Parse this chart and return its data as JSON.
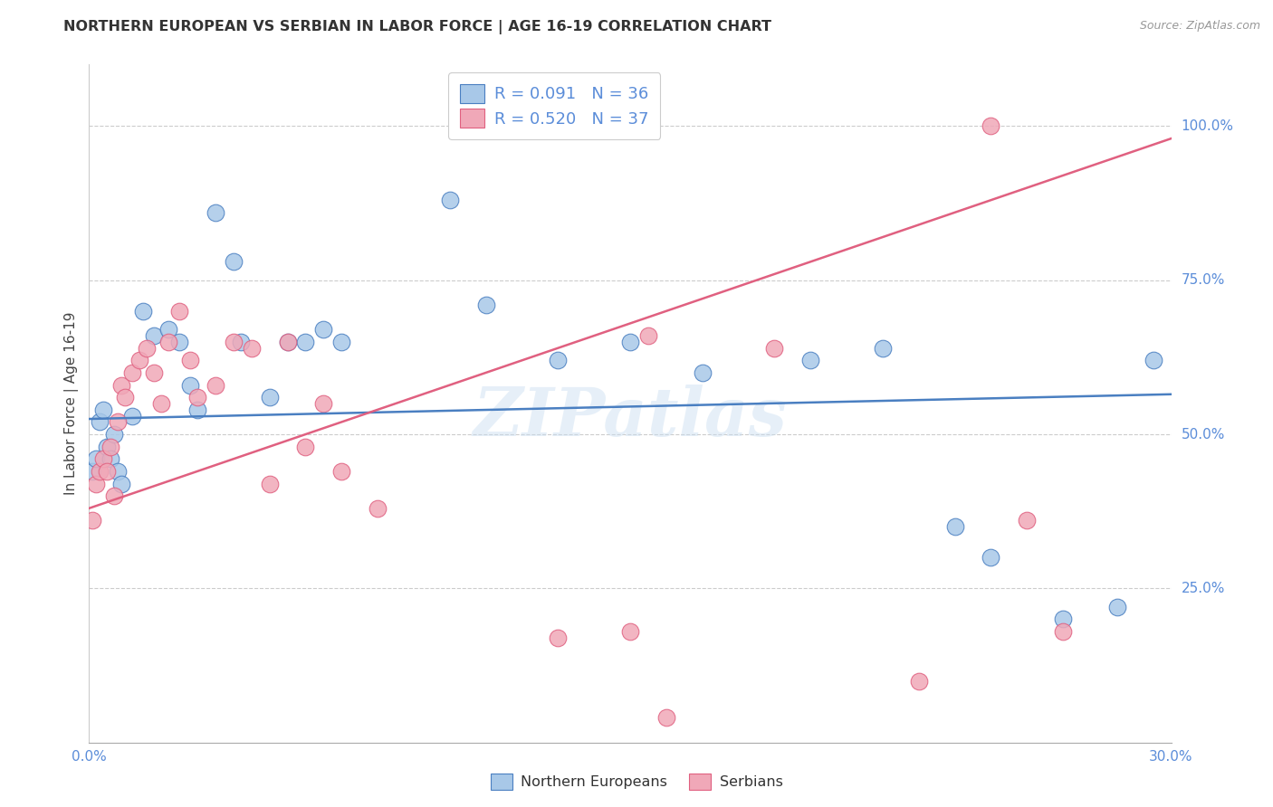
{
  "title": "NORTHERN EUROPEAN VS SERBIAN IN LABOR FORCE | AGE 16-19 CORRELATION CHART",
  "source": "Source: ZipAtlas.com",
  "ylabel": "In Labor Force | Age 16-19",
  "x_min": 0.0,
  "x_max": 0.3,
  "y_min": 0.0,
  "y_max": 1.1,
  "blue_color": "#a8c8e8",
  "pink_color": "#f0a8b8",
  "blue_line_color": "#4a7fc1",
  "pink_line_color": "#e06080",
  "legend_blue_label": "R = 0.091   N = 36",
  "legend_pink_label": "R = 0.520   N = 37",
  "watermark": "ZIPatlas",
  "ne_x": [
    0.001,
    0.002,
    0.003,
    0.004,
    0.005,
    0.006,
    0.007,
    0.008,
    0.009,
    0.012,
    0.015,
    0.018,
    0.022,
    0.025,
    0.028,
    0.03,
    0.035,
    0.04,
    0.042,
    0.05,
    0.055,
    0.06,
    0.065,
    0.07,
    0.1,
    0.11,
    0.13,
    0.15,
    0.17,
    0.2,
    0.22,
    0.24,
    0.25,
    0.27,
    0.285,
    0.295
  ],
  "ne_y": [
    0.44,
    0.46,
    0.52,
    0.54,
    0.48,
    0.46,
    0.5,
    0.44,
    0.42,
    0.53,
    0.7,
    0.66,
    0.67,
    0.65,
    0.58,
    0.54,
    0.86,
    0.78,
    0.65,
    0.56,
    0.65,
    0.65,
    0.67,
    0.65,
    0.88,
    0.71,
    0.62,
    0.65,
    0.6,
    0.62,
    0.64,
    0.35,
    0.3,
    0.2,
    0.22,
    0.62
  ],
  "sr_x": [
    0.001,
    0.002,
    0.003,
    0.004,
    0.005,
    0.006,
    0.007,
    0.008,
    0.009,
    0.01,
    0.012,
    0.014,
    0.016,
    0.018,
    0.02,
    0.022,
    0.025,
    0.028,
    0.03,
    0.035,
    0.04,
    0.045,
    0.05,
    0.055,
    0.06,
    0.065,
    0.07,
    0.08,
    0.13,
    0.15,
    0.155,
    0.16,
    0.19,
    0.23,
    0.25,
    0.26,
    0.27
  ],
  "sr_y": [
    0.36,
    0.42,
    0.44,
    0.46,
    0.44,
    0.48,
    0.4,
    0.52,
    0.58,
    0.56,
    0.6,
    0.62,
    0.64,
    0.6,
    0.55,
    0.65,
    0.7,
    0.62,
    0.56,
    0.58,
    0.65,
    0.64,
    0.42,
    0.65,
    0.48,
    0.55,
    0.44,
    0.38,
    0.17,
    0.18,
    0.66,
    0.04,
    0.64,
    0.1,
    1.0,
    0.36,
    0.18
  ],
  "y_tick_vals": [
    0.25,
    0.5,
    0.75,
    1.0
  ],
  "y_tick_labels": [
    "25.0%",
    "50.0%",
    "75.0%",
    "100.0%"
  ]
}
